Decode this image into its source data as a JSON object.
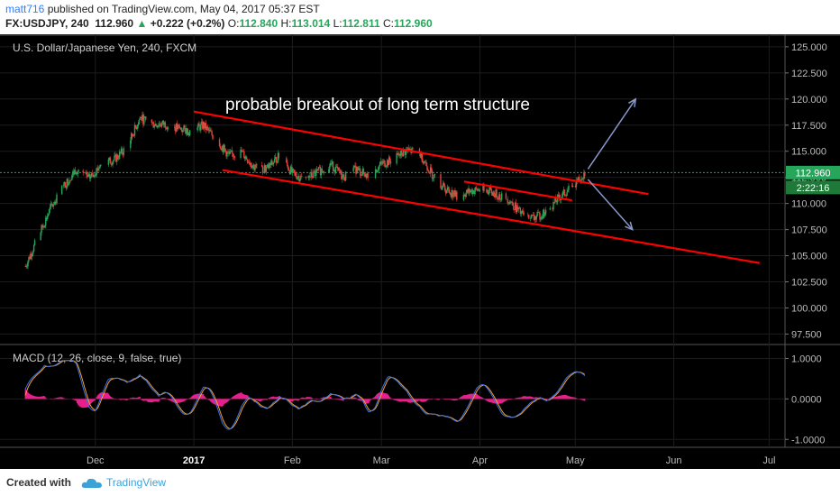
{
  "header": {
    "user": "matt716",
    "published": "published on TradingView.com, May 04, 2017 05:37 EST",
    "symbol": "FX:USDJPY, 240",
    "price": "112.960",
    "change": "+0.222 (+0.2%)",
    "ohlc": {
      "o_label": "O:",
      "o": "112.840",
      "h_label": "H:",
      "h": "113.014",
      "l_label": "L:",
      "l": "112.811",
      "c_label": "C:",
      "c": "112.960"
    }
  },
  "footer": {
    "created_with": "Created with",
    "brand": "TradingView"
  },
  "colors": {
    "background": "#000000",
    "up_candle": "#26a65b",
    "down_candle": "#e8403a",
    "trendline": "#ff0000",
    "arrow": "#8899cc",
    "macd": "#3b6fe0",
    "signal": "#f4a22a",
    "histogram": "#e91e8c",
    "last_price_bg": "#26a65b",
    "countdown_bg": "#1f7a3a"
  },
  "chart_data": [
    {
      "type": "candlestick",
      "title": "U.S. Dollar/Japanese Yen, 240, FXCM",
      "annotation": "probable breakout of long term structure",
      "x_ticks": [
        "Dec",
        "2017",
        "Feb",
        "Mar",
        "Apr",
        "May",
        "Jun",
        "Jul"
      ],
      "y_ticks": [
        "125.000",
        "122.500",
        "120.000",
        "117.500",
        "115.000",
        "112.500",
        "110.000",
        "107.500",
        "105.000",
        "102.500",
        "100.000",
        "97.500"
      ],
      "ylim": [
        96.5,
        126.2
      ],
      "last_price": "112.960",
      "countdown": "2:22:16",
      "price_path": [
        [
          "2016-11-09",
          104.0
        ],
        [
          "2016-11-13",
          106.8
        ],
        [
          "2016-11-17",
          109.6
        ],
        [
          "2016-11-21",
          111.6
        ],
        [
          "2016-11-25",
          113.3
        ],
        [
          "2016-11-29",
          112.4
        ],
        [
          "2016-12-03",
          113.8
        ],
        [
          "2016-12-07",
          114.2
        ],
        [
          "2016-12-11",
          115.4
        ],
        [
          "2016-12-15",
          118.2
        ],
        [
          "2016-12-19",
          117.6
        ],
        [
          "2016-12-23",
          117.6
        ],
        [
          "2016-12-27",
          117.2
        ],
        [
          "2016-12-31",
          116.9
        ],
        [
          "2017-01-04",
          117.5
        ],
        [
          "2017-01-08",
          116.1
        ],
        [
          "2017-01-12",
          114.6
        ],
        [
          "2017-01-16",
          114.9
        ],
        [
          "2017-01-20",
          113.5
        ],
        [
          "2017-01-24",
          113.3
        ],
        [
          "2017-01-28",
          114.6
        ],
        [
          "2017-02-01",
          112.9
        ],
        [
          "2017-02-05",
          112.3
        ],
        [
          "2017-02-09",
          113.0
        ],
        [
          "2017-02-13",
          113.8
        ],
        [
          "2017-02-17",
          112.5
        ],
        [
          "2017-02-21",
          113.3
        ],
        [
          "2017-02-25",
          112.6
        ],
        [
          "2017-03-01",
          113.8
        ],
        [
          "2017-03-05",
          114.2
        ],
        [
          "2017-03-09",
          115.1
        ],
        [
          "2017-03-13",
          114.8
        ],
        [
          "2017-03-17",
          112.8
        ],
        [
          "2017-03-21",
          111.4
        ],
        [
          "2017-03-25",
          110.7
        ],
        [
          "2017-03-29",
          111.2
        ],
        [
          "2017-04-02",
          111.4
        ],
        [
          "2017-04-06",
          110.9
        ],
        [
          "2017-04-10",
          110.4
        ],
        [
          "2017-04-14",
          109.0
        ],
        [
          "2017-04-18",
          108.6
        ],
        [
          "2017-04-22",
          109.2
        ],
        [
          "2017-04-26",
          110.6
        ],
        [
          "2017-04-30",
          111.6
        ],
        [
          "2017-05-04",
          112.96
        ]
      ],
      "trendlines": [
        {
          "x1": "2017-01-01",
          "y1": 118.8,
          "x2": "2017-05-24",
          "y2": 110.9
        },
        {
          "x1": "2017-01-10",
          "y1": 113.2,
          "x2": "2017-06-28",
          "y2": 104.3
        },
        {
          "x1": "2017-03-27",
          "y1": 112.1,
          "x2": "2017-04-30",
          "y2": 110.3
        }
      ],
      "arrows": [
        {
          "x1": "2017-05-05",
          "y1": 113.3,
          "x2": "2017-05-20",
          "y2": 120.0
        },
        {
          "x1": "2017-05-05",
          "y1": 112.3,
          "x2": "2017-05-19",
          "y2": 107.5
        }
      ]
    },
    {
      "type": "line",
      "title": "MACD (12, 26, close, 9, false, true)",
      "y_ticks": [
        "1.0000",
        "0.0000",
        "-1.0000"
      ],
      "ylim": [
        -1.15,
        1.3
      ],
      "series": [
        {
          "name": "MACD"
        },
        {
          "name": "Signal"
        },
        {
          "name": "Histogram"
        }
      ]
    }
  ]
}
